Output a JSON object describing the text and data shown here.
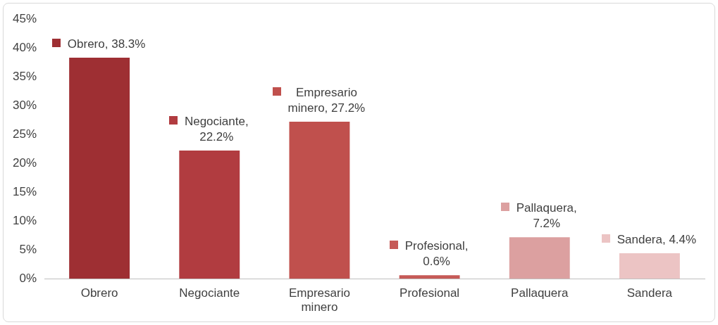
{
  "chart_data": {
    "type": "bar",
    "categories": [
      "Obrero",
      "Negociante",
      "Empresario minero",
      "Profesional",
      "Pallaquera",
      "Sandera"
    ],
    "values": [
      38.3,
      22.2,
      27.2,
      0.6,
      7.2,
      4.4
    ],
    "colors": [
      "#9e2f33",
      "#b13c40",
      "#c0504d",
      "#c65a57",
      "#dca0a0",
      "#ecc4c4"
    ],
    "value_labels": [
      "Obrero, 38.3%",
      "Negociante, 22.2%",
      "Empresario minero, 27.2%",
      "Profesional, 0.6%",
      "Pallaquera, 7.2%",
      "Sandera, 4.4%"
    ],
    "ylim": [
      0,
      45
    ],
    "yticks": [
      {
        "value": 0,
        "label": "0%"
      },
      {
        "value": 5,
        "label": "5%"
      },
      {
        "value": 10,
        "label": "10%"
      },
      {
        "value": 15,
        "label": "15%"
      },
      {
        "value": 20,
        "label": "20%"
      },
      {
        "value": 25,
        "label": "25%"
      },
      {
        "value": 30,
        "label": "30%"
      },
      {
        "value": 35,
        "label": "35%"
      },
      {
        "value": 40,
        "label": "40%"
      },
      {
        "value": 45,
        "label": "45%"
      }
    ],
    "grid": false,
    "legend": false
  }
}
